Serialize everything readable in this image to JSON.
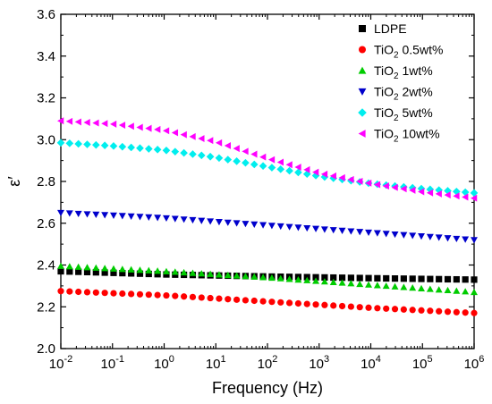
{
  "chart_data": {
    "type": "scatter",
    "title": "",
    "xlabel": "Frequency (Hz)",
    "ylabel": "ε′",
    "xscale": "log",
    "xlim": [
      0.01,
      1000000
    ],
    "ylim": [
      2.0,
      3.6
    ],
    "x_ticks": [
      {
        "value": 0.01,
        "base": "10",
        "exp": "-2"
      },
      {
        "value": 0.1,
        "base": "10",
        "exp": "-1"
      },
      {
        "value": 1,
        "base": "10",
        "exp": "0"
      },
      {
        "value": 10,
        "base": "10",
        "exp": "1"
      },
      {
        "value": 100,
        "base": "10",
        "exp": "2"
      },
      {
        "value": 1000,
        "base": "10",
        "exp": "3"
      },
      {
        "value": 10000,
        "base": "10",
        "exp": "4"
      },
      {
        "value": 100000,
        "base": "10",
        "exp": "5"
      },
      {
        "value": 1000000,
        "base": "10",
        "exp": "6"
      }
    ],
    "y_ticks": [
      "2.0",
      "2.2",
      "2.4",
      "2.6",
      "2.8",
      "3.0",
      "3.2",
      "3.4",
      "3.6"
    ],
    "legend_position": "top-right",
    "grid": false,
    "series": [
      {
        "legend": {
          "main": "LDPE",
          "sub": "",
          "rest": ""
        },
        "marker": "square",
        "color": "#000000",
        "points": [
          [
            0.01,
            2.37
          ],
          [
            1,
            2.355
          ],
          [
            100,
            2.345
          ],
          [
            10000,
            2.337
          ],
          [
            1000000,
            2.33
          ]
        ]
      },
      {
        "legend": {
          "main": "TiO",
          "sub": "2",
          "rest": " 0.5wt%"
        },
        "marker": "circle",
        "color": "#ff0000",
        "points": [
          [
            0.01,
            2.275
          ],
          [
            1,
            2.255
          ],
          [
            100,
            2.225
          ],
          [
            10000,
            2.195
          ],
          [
            1000000,
            2.17
          ]
        ]
      },
      {
        "legend": {
          "main": "TiO",
          "sub": "2",
          "rest": " 1wt%"
        },
        "marker": "triangle-up",
        "color": "#00cc00",
        "points": [
          [
            0.01,
            2.395
          ],
          [
            1,
            2.37
          ],
          [
            100,
            2.34
          ],
          [
            10000,
            2.305
          ],
          [
            1000000,
            2.27
          ]
        ]
      },
      {
        "legend": {
          "main": "TiO",
          "sub": "2",
          "rest": " 2wt%"
        },
        "marker": "triangle-down",
        "color": "#0000cc",
        "points": [
          [
            0.01,
            2.65
          ],
          [
            1,
            2.625
          ],
          [
            100,
            2.59
          ],
          [
            10000,
            2.555
          ],
          [
            1000000,
            2.52
          ]
        ]
      },
      {
        "legend": {
          "main": "TiO",
          "sub": "2",
          "rest": " 5wt%"
        },
        "marker": "diamond",
        "color": "#00eeee",
        "points": [
          [
            0.01,
            2.985
          ],
          [
            0.1,
            2.97
          ],
          [
            1,
            2.95
          ],
          [
            10,
            2.915
          ],
          [
            100,
            2.87
          ],
          [
            1000,
            2.825
          ],
          [
            10000,
            2.79
          ],
          [
            100000,
            2.765
          ],
          [
            1000000,
            2.745
          ]
        ]
      },
      {
        "legend": {
          "main": "TiO",
          "sub": "2",
          "rest": " 10wt%"
        },
        "marker": "triangle-left",
        "color": "#ff00ff",
        "points": [
          [
            0.01,
            3.09
          ],
          [
            0.1,
            3.075
          ],
          [
            1,
            3.045
          ],
          [
            10,
            2.99
          ],
          [
            100,
            2.91
          ],
          [
            1000,
            2.84
          ],
          [
            10000,
            2.79
          ],
          [
            100000,
            2.75
          ],
          [
            1000000,
            2.72
          ]
        ]
      }
    ]
  }
}
